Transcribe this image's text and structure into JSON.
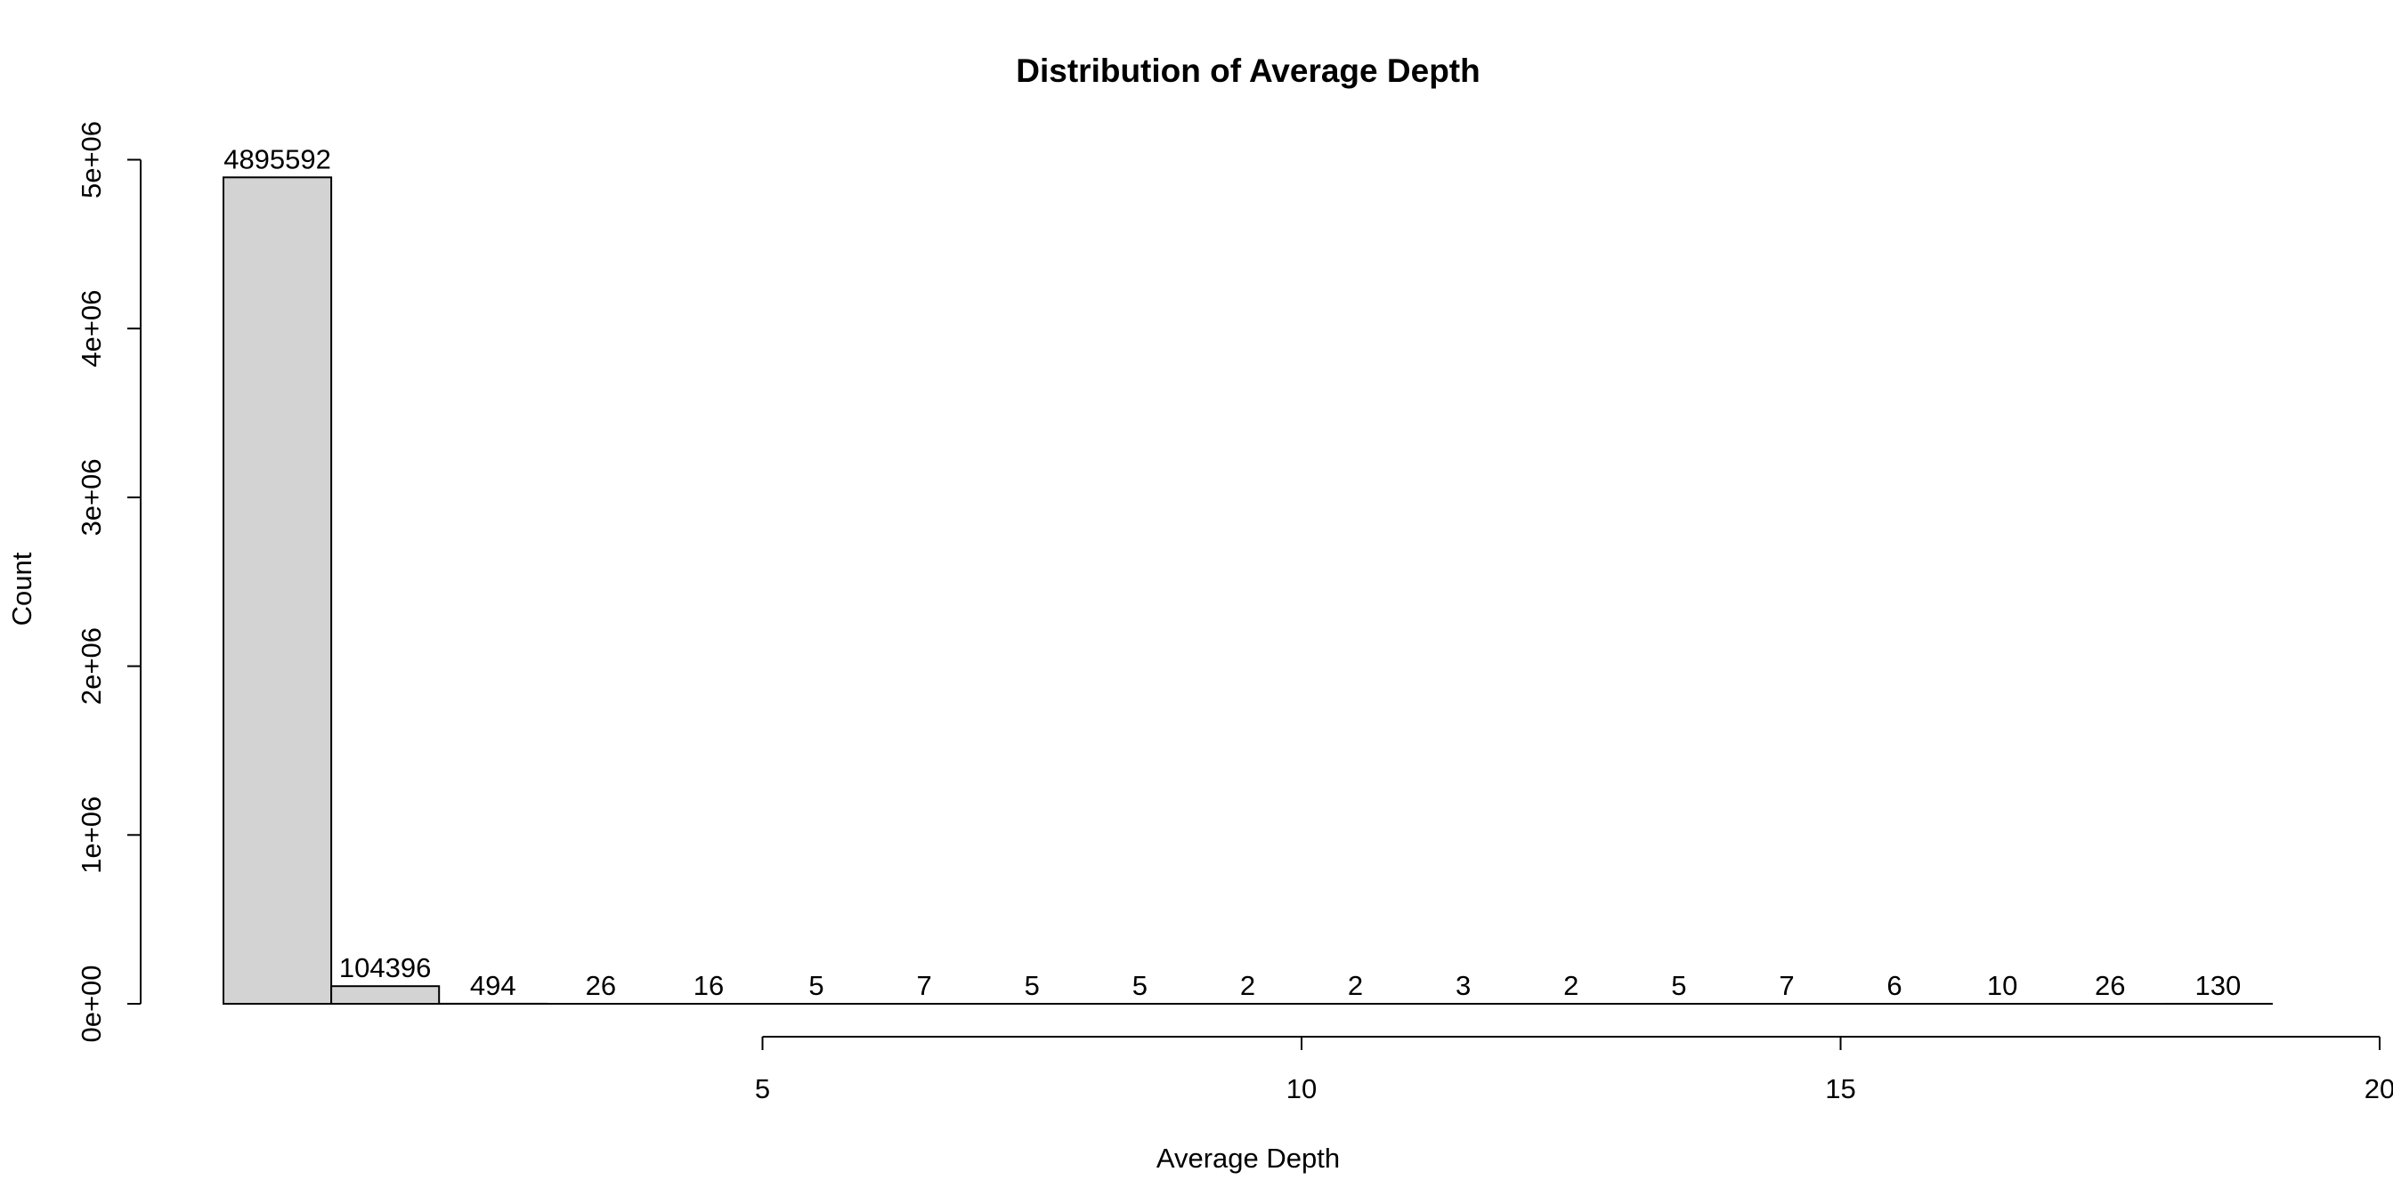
{
  "chart_data": {
    "type": "bar",
    "title": "Distribution of Average Depth",
    "xlabel": "Average Depth",
    "ylabel": "Count",
    "x_bin_starts": [
      0,
      1,
      2,
      3,
      4,
      5,
      6,
      7,
      8,
      9,
      10,
      11,
      12,
      13,
      14,
      15,
      16,
      17,
      18
    ],
    "x_bin_width": 1,
    "values": [
      4895592,
      104396,
      494,
      26,
      16,
      5,
      7,
      5,
      5,
      2,
      2,
      3,
      2,
      5,
      7,
      6,
      10,
      26,
      130
    ],
    "data_labels": [
      "4895592",
      "104396",
      "494",
      "26",
      "16",
      "5",
      "7",
      "5",
      "5",
      "2",
      "2",
      "3",
      "2",
      "5",
      "7",
      "6",
      "10",
      "26",
      "130"
    ],
    "xlim": [
      0,
      19
    ],
    "ylim": [
      0,
      5000000
    ],
    "x_ticks": [
      5,
      10,
      15,
      20
    ],
    "x_tick_labels": [
      "5",
      "10",
      "15",
      "20"
    ],
    "y_ticks": [
      0,
      1000000,
      2000000,
      3000000,
      4000000,
      5000000
    ],
    "y_tick_labels": [
      "0e+00",
      "1e+06",
      "2e+06",
      "3e+06",
      "4e+06",
      "5e+06"
    ],
    "bar_color": "#d3d3d3",
    "grid": false,
    "legend": "none"
  }
}
